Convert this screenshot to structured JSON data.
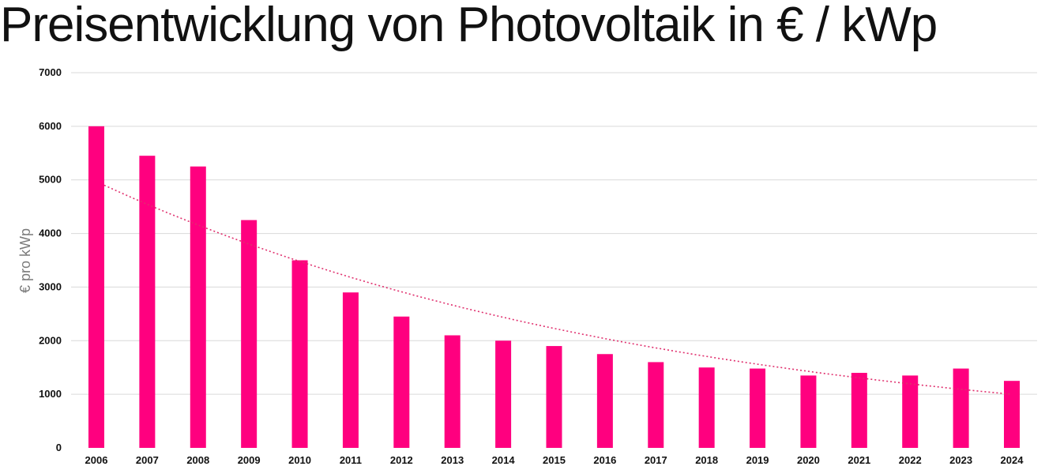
{
  "chart_data": {
    "type": "bar",
    "title": "Preisentwicklung von Photovoltaik in € / kWp",
    "xlabel": "",
    "ylabel": "€ pro kWp",
    "categories": [
      "2006",
      "2007",
      "2008",
      "2009",
      "2010",
      "2011",
      "2012",
      "2013",
      "2014",
      "2015",
      "2016",
      "2017",
      "2018",
      "2019",
      "2020",
      "2021",
      "2022",
      "2023",
      "2024"
    ],
    "values": [
      6000,
      5450,
      5250,
      4250,
      3500,
      2900,
      2450,
      2100,
      2000,
      1900,
      1750,
      1600,
      1500,
      1480,
      1350,
      1400,
      1350,
      1480,
      1250
    ],
    "ylim": [
      0,
      7000
    ],
    "yticks": [
      0,
      1000,
      2000,
      3000,
      4000,
      5000,
      6000,
      7000
    ],
    "grid": true,
    "trendline": {
      "type": "exponential",
      "start_value": 4900,
      "end_value": 1000
    },
    "colors": {
      "bar": "#ff007f",
      "trend": "#e0306e",
      "grid": "#d9d9d9"
    }
  }
}
